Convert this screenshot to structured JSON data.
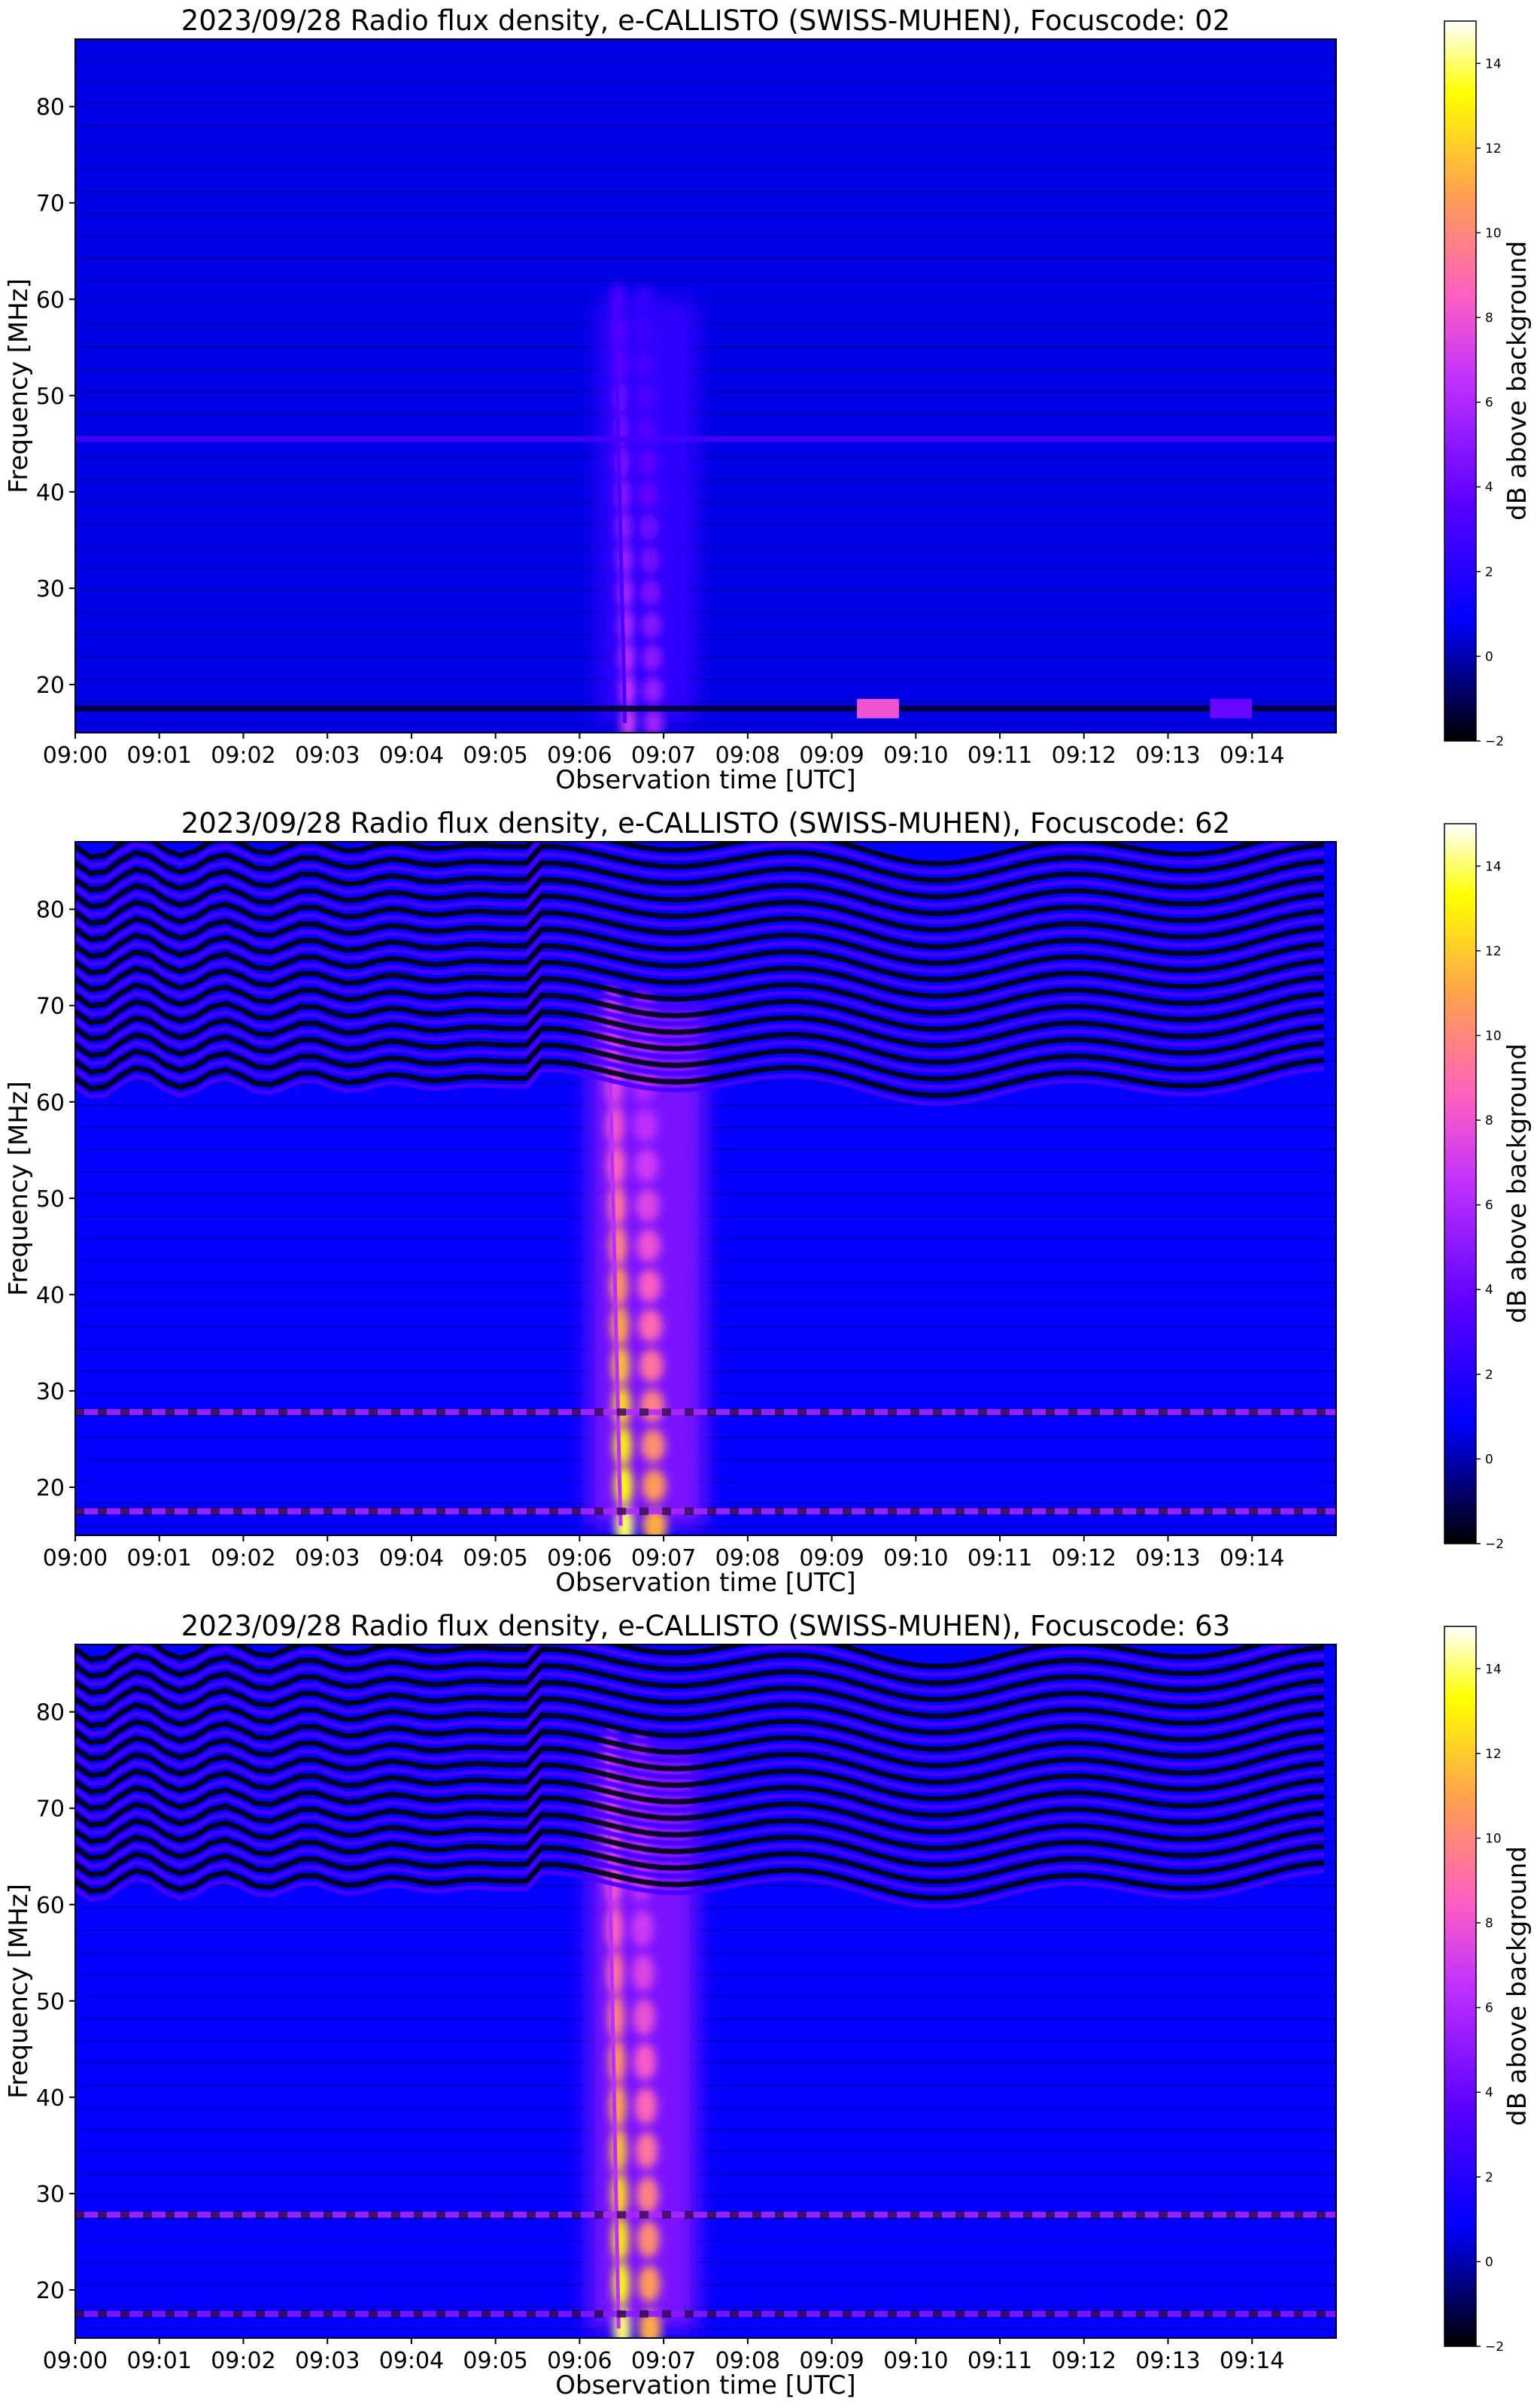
{
  "figure": {
    "panels": [
      {
        "title": "2023/09/28  Radio flux density, e-CALLISTO (SWISS-MUHEN), Focuscode: 02",
        "xlabel": "Observation time [UTC]",
        "ylabel": "Frequency [MHz]",
        "colorbar_label": "dB above background"
      },
      {
        "title": "2023/09/28  Radio flux density, e-CALLISTO (SWISS-MUHEN), Focuscode: 62",
        "xlabel": "Observation time [UTC]",
        "ylabel": "Frequency [MHz]",
        "colorbar_label": "dB above background"
      },
      {
        "title": "2023/09/28  Radio flux density, e-CALLISTO (SWISS-MUHEN), Focuscode: 63",
        "xlabel": "Observation time [UTC]",
        "ylabel": "Frequency [MHz]",
        "colorbar_label": "dB above background"
      }
    ]
  },
  "colors": {
    "colormap_gnuplot2": [
      "#000000",
      "#0000ff",
      "#8c00ff",
      "#ff4dff",
      "#ffa64d",
      "#ffff00",
      "#ffffff"
    ]
  },
  "chart_data": [
    {
      "type": "heatmap",
      "title": "2023/09/28  Radio flux density, e-CALLISTO (SWISS-MUHEN), Focuscode: 02",
      "xlabel": "Observation time [UTC]",
      "ylabel": "Frequency [MHz]",
      "x_ticks": [
        "09:00",
        "09:01",
        "09:02",
        "09:03",
        "09:04",
        "09:05",
        "09:06",
        "09:07",
        "09:08",
        "09:09",
        "09:10",
        "09:11",
        "09:12",
        "09:13",
        "09:14"
      ],
      "y_ticks": [
        20,
        30,
        40,
        50,
        60,
        70,
        80
      ],
      "ylim": [
        15,
        87
      ],
      "xlim_minutes": [
        0,
        15
      ],
      "colorbar": {
        "label": "dB above background",
        "ticks": [
          -2,
          0,
          2,
          4,
          6,
          8,
          10,
          12,
          14
        ],
        "range": [
          -2,
          15
        ]
      },
      "background_dB": 0.6,
      "features": [
        {
          "kind": "burst",
          "t_start": 6.3,
          "t_end": 7.3,
          "f_low": 16,
          "f_high": 60,
          "peak_dB": 7
        },
        {
          "kind": "band",
          "f": 45.5,
          "dB": 3
        },
        {
          "kind": "band",
          "f": 17.5,
          "dB": -1.5
        },
        {
          "kind": "patch",
          "t_start": 9.3,
          "t_end": 9.8,
          "f_low": 16.5,
          "f_high": 18.5,
          "peak_dB": 8
        },
        {
          "kind": "patch",
          "t_start": 13.5,
          "t_end": 14.0,
          "f_low": 16.5,
          "f_high": 18.5,
          "peak_dB": 4
        }
      ]
    },
    {
      "type": "heatmap",
      "title": "2023/09/28  Radio flux density, e-CALLISTO (SWISS-MUHEN), Focuscode: 62",
      "xlabel": "Observation time [UTC]",
      "ylabel": "Frequency [MHz]",
      "x_ticks": [
        "09:00",
        "09:01",
        "09:02",
        "09:03",
        "09:04",
        "09:05",
        "09:06",
        "09:07",
        "09:08",
        "09:09",
        "09:10",
        "09:11",
        "09:12",
        "09:13",
        "09:14"
      ],
      "y_ticks": [
        20,
        30,
        40,
        50,
        60,
        70,
        80
      ],
      "ylim": [
        15,
        87
      ],
      "xlim_minutes": [
        0,
        15
      ],
      "colorbar": {
        "label": "dB above background",
        "ticks": [
          -2,
          0,
          2,
          4,
          6,
          8,
          10,
          12,
          14
        ],
        "range": [
          -2,
          15
        ]
      },
      "background_dB": 1.0,
      "features": [
        {
          "kind": "burst",
          "t_start": 6.2,
          "t_end": 7.4,
          "f_low": 16,
          "f_high": 70,
          "peak_dB": 14
        },
        {
          "kind": "band",
          "f": 17.5,
          "dB": 6
        },
        {
          "kind": "band",
          "f": 27.8,
          "dB": 6
        },
        {
          "kind": "stripes",
          "f_low": 62,
          "f_high": 87,
          "dB": 3
        }
      ]
    },
    {
      "type": "heatmap",
      "title": "2023/09/28  Radio flux density, e-CALLISTO (SWISS-MUHEN), Focuscode: 63",
      "xlabel": "Observation time [UTC]",
      "ylabel": "Frequency [MHz]",
      "x_ticks": [
        "09:00",
        "09:01",
        "09:02",
        "09:03",
        "09:04",
        "09:05",
        "09:06",
        "09:07",
        "09:08",
        "09:09",
        "09:10",
        "09:11",
        "09:12",
        "09:13",
        "09:14"
      ],
      "y_ticks": [
        20,
        30,
        40,
        50,
        60,
        70,
        80
      ],
      "ylim": [
        15,
        87
      ],
      "xlim_minutes": [
        0,
        15
      ],
      "colorbar": {
        "label": "dB above background",
        "ticks": [
          -2,
          0,
          2,
          4,
          6,
          8,
          10,
          12,
          14
        ],
        "range": [
          -2,
          15
        ]
      },
      "background_dB": 1.0,
      "features": [
        {
          "kind": "burst",
          "t_start": 6.2,
          "t_end": 7.3,
          "f_low": 16,
          "f_high": 76,
          "peak_dB": 14
        },
        {
          "kind": "band",
          "f": 17.5,
          "dB": 5
        },
        {
          "kind": "band",
          "f": 27.8,
          "dB": 6
        },
        {
          "kind": "stripes",
          "f_low": 62,
          "f_high": 87,
          "dB": 3
        }
      ]
    }
  ]
}
